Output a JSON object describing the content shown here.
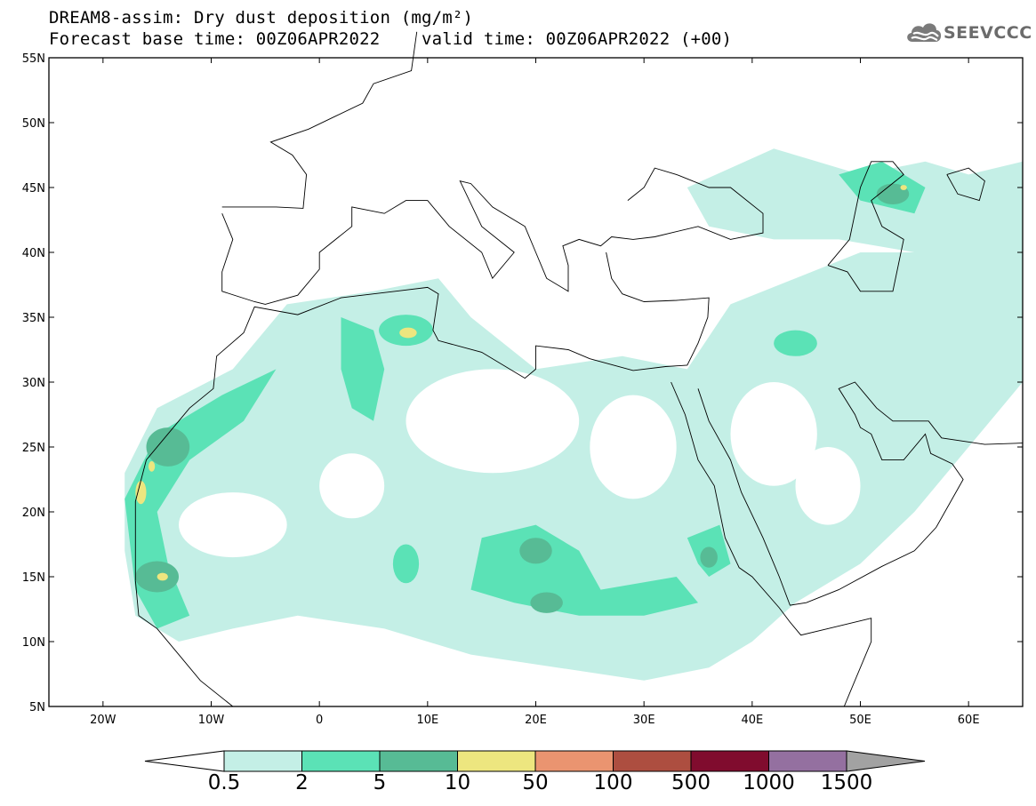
{
  "header": {
    "title_line1": "DREAM8-assim: Dry dust deposition (mg/m²)",
    "title_line2": "Forecast base time: 00Z06APR2022    valid time: 00Z06APR2022 (+00)",
    "logo_text": "SEEVCCC"
  },
  "map": {
    "lat_labels": [
      "55N",
      "50N",
      "45N",
      "40N",
      "35N",
      "30N",
      "25N",
      "20N",
      "15N",
      "10N",
      "5N"
    ],
    "lon_labels": [
      "20W",
      "10W",
      "0",
      "10E",
      "20E",
      "30E",
      "40E",
      "50E",
      "60E"
    ],
    "lon_range": [
      -25,
      65
    ],
    "lat_range": [
      5,
      55
    ]
  },
  "legend": {
    "labels": [
      "0.5",
      "2",
      "5",
      "10",
      "50",
      "100",
      "500",
      "1000",
      "1500"
    ],
    "colors": [
      "#c4efe6",
      "#5be2b6",
      "#57bb95",
      "#ede67f",
      "#ea9470",
      "#ad4e40",
      "#800c2e",
      "#9470a0"
    ],
    "below_color": "#ffffff",
    "above_color": "#a2a2a2"
  }
}
